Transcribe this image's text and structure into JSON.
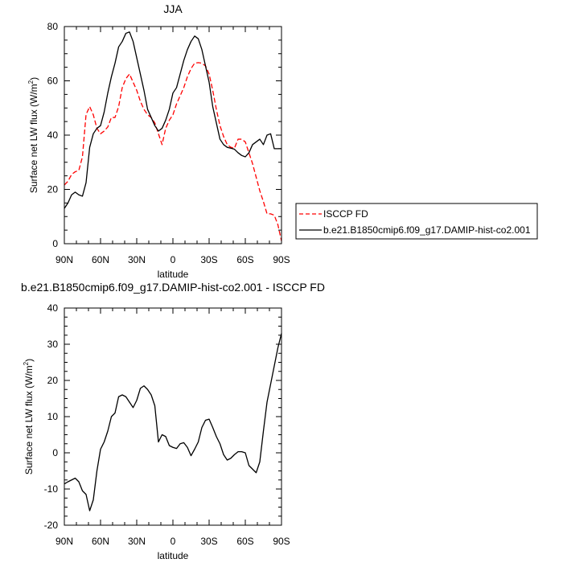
{
  "chart_data": [
    {
      "type": "line",
      "title": "JJA",
      "xlabel": "latitude",
      "ylabel": "Surface net LW flux (W/m",
      "ylabel_sup": "2",
      "ylabel_end": ")",
      "xlim": [
        90,
        -90
      ],
      "ylim": [
        0,
        80
      ],
      "x_ticks": [
        90,
        60,
        30,
        0,
        -30,
        -60,
        -90
      ],
      "x_tick_labels": [
        "90N",
        "60N",
        "30N",
        "0",
        "30S",
        "60S",
        "90S"
      ],
      "y_ticks": [
        0,
        20,
        40,
        60,
        80
      ],
      "y_tick_labels": [
        "0",
        "20",
        "40",
        "60",
        "80"
      ],
      "grid": false,
      "legend_position": "right",
      "series": [
        {
          "name": "ISCCP FD",
          "color": "#ff0000",
          "dash": "dashed",
          "x": [
            90,
            87,
            84,
            81,
            78,
            75,
            72,
            69,
            66,
            63,
            60,
            57,
            54,
            51,
            48,
            45,
            42,
            39,
            36,
            33,
            30,
            27,
            24,
            21,
            18,
            15,
            12,
            9,
            6,
            3,
            0,
            -3,
            -6,
            -9,
            -12,
            -15,
            -18,
            -21,
            -24,
            -27,
            -30,
            -33,
            -36,
            -39,
            -42,
            -45,
            -48,
            -51,
            -54,
            -57,
            -60,
            -63,
            -66,
            -69,
            -72,
            -75,
            -78,
            -81,
            -84,
            -87,
            -90
          ],
          "y": [
            21.6,
            23,
            25.5,
            26.5,
            27,
            32,
            47.6,
            50.5,
            47.5,
            42.5,
            40.5,
            41.5,
            43,
            46.5,
            46.5,
            50.5,
            57.5,
            60.8,
            62.5,
            59.5,
            56.5,
            52.5,
            49.5,
            47.5,
            46.5,
            44.5,
            40.5,
            36.5,
            42.5,
            45.5,
            47.5,
            51.5,
            54.5,
            57.5,
            61.5,
            64.5,
            66.5,
            66.7,
            66.5,
            65.5,
            62.5,
            56.5,
            49.5,
            43.5,
            39.5,
            36.5,
            35.5,
            35.2,
            38.5,
            38.5,
            37.5,
            33.5,
            29.5,
            24.5,
            19.5,
            15.5,
            11,
            11,
            10.5,
            7,
            1
          ]
        },
        {
          "name": "b.e21.B1850cmip6.f09_g17.DAMIP-hist-co2.001",
          "color": "#000000",
          "dash": "solid",
          "x": [
            90,
            87,
            84,
            81,
            78,
            75,
            72,
            69,
            66,
            63,
            60,
            57,
            54,
            51,
            48,
            45,
            42,
            39,
            36,
            33,
            30,
            27,
            24,
            21,
            18,
            15,
            12,
            9,
            6,
            3,
            0,
            -3,
            -6,
            -9,
            -12,
            -15,
            -18,
            -21,
            -24,
            -27,
            -30,
            -33,
            -36,
            -39,
            -42,
            -45,
            -48,
            -51,
            -54,
            -57,
            -60,
            -63,
            -66,
            -69,
            -72,
            -75,
            -78,
            -81,
            -84,
            -87,
            -90
          ],
          "y": [
            13,
            15,
            18,
            19,
            18,
            17.5,
            22.5,
            35.5,
            40.5,
            42.5,
            43.5,
            48.5,
            55.5,
            61.5,
            66.5,
            72.5,
            74.5,
            77.5,
            78,
            74.5,
            68.5,
            62.5,
            56.5,
            49.5,
            46.5,
            43.5,
            41.5,
            42.5,
            45.5,
            49.5,
            55.5,
            57.5,
            62.5,
            67.5,
            71.5,
            74.5,
            76.5,
            75.5,
            71.5,
            65.5,
            59.5,
            50.5,
            44.5,
            38.5,
            36.5,
            35.5,
            35.2,
            34.8,
            33.5,
            32.5,
            32,
            33.5,
            36.5,
            37.5,
            38.5,
            36.5,
            40,
            40.5,
            35,
            35,
            35
          ]
        }
      ]
    },
    {
      "type": "line",
      "title": "b.e21.B1850cmip6.f09_g17.DAMIP-hist-co2.001 - ISCCP FD",
      "xlabel": "latitude",
      "ylabel": "Surface net LW flux (W/m",
      "ylabel_sup": "2",
      "ylabel_end": ")",
      "xlim": [
        90,
        -90
      ],
      "ylim": [
        -20,
        40
      ],
      "x_ticks": [
        90,
        60,
        30,
        0,
        -30,
        -60,
        -90
      ],
      "x_tick_labels": [
        "90N",
        "60N",
        "30N",
        "0",
        "30S",
        "60S",
        "90S"
      ],
      "y_ticks": [
        -20,
        -10,
        0,
        10,
        20,
        30,
        40
      ],
      "y_tick_labels": [
        "-20",
        "-10",
        "0",
        "10",
        "20",
        "30",
        "40"
      ],
      "grid": false,
      "series": [
        {
          "color": "#000000",
          "dash": "solid",
          "x": [
            90,
            87,
            84,
            81,
            78,
            75,
            72,
            69,
            66,
            63,
            60,
            57,
            54,
            51,
            48,
            45,
            42,
            39,
            36,
            33,
            30,
            27,
            24,
            21,
            18,
            15,
            12,
            9,
            6,
            3,
            0,
            -3,
            -6,
            -9,
            -12,
            -15,
            -18,
            -21,
            -24,
            -27,
            -30,
            -33,
            -36,
            -39,
            -42,
            -45,
            -48,
            -51,
            -54,
            -57,
            -60,
            -63,
            -66,
            -69,
            -72,
            -75,
            -78,
            -81,
            -84,
            -87,
            -90
          ],
          "y": [
            -8.6,
            -8,
            -7.5,
            -7,
            -8,
            -10.5,
            -11.5,
            -16,
            -13,
            -5,
            1,
            3,
            6,
            10,
            11,
            15.5,
            16,
            15.5,
            14,
            12.5,
            14.5,
            17.8,
            18.5,
            17.5,
            16,
            13,
            3,
            5,
            4.5,
            2,
            1.5,
            1.2,
            2.5,
            2.8,
            1.5,
            -0.8,
            1,
            3,
            7,
            9,
            9.3,
            7,
            4.5,
            2.5,
            -0.5,
            -2,
            -1.5,
            -0.5,
            0.3,
            0.3,
            0,
            -3.5,
            -4.5,
            -5.5,
            -2.5,
            6,
            14,
            19,
            24,
            29,
            33
          ]
        }
      ]
    }
  ]
}
